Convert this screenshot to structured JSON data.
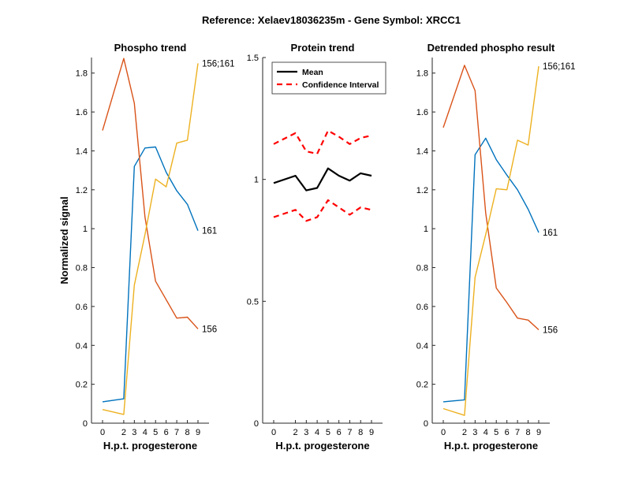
{
  "figure": {
    "suptitle": "Reference:  Xelaev18036235m - Gene Symbol:  XRCC1"
  },
  "colors": {
    "blue": "#0072BD",
    "orange": "#D95319",
    "yellow": "#EDB120",
    "mean": "#000000",
    "ci": "#FF0000"
  },
  "chart_data": [
    {
      "type": "line",
      "title": "Phospho trend",
      "xlabel": "H.p.t. progesterone",
      "ylabel": "Normalized signal",
      "x": [
        0,
        2,
        3,
        4,
        5,
        6,
        7,
        8,
        9
      ],
      "xticks": [
        "0",
        "2",
        "3",
        "4",
        "5",
        "6",
        "7",
        "8",
        "9"
      ],
      "ylim": [
        0,
        1.88
      ],
      "yticks": [
        "0",
        "0.2",
        "0.4",
        "0.6",
        "0.8",
        "1",
        "1.2",
        "1.4",
        "1.6",
        "1.8"
      ],
      "series": [
        {
          "name": "161",
          "color": "blue",
          "values": [
            0.11,
            0.125,
            1.32,
            1.415,
            1.42,
            1.29,
            1.195,
            1.125,
            0.99
          ]
        },
        {
          "name": "156",
          "color": "orange",
          "values": [
            1.505,
            1.875,
            1.645,
            1.06,
            0.73,
            0.635,
            0.54,
            0.545,
            0.485
          ]
        },
        {
          "name": "156;161",
          "color": "yellow",
          "values": [
            0.07,
            0.045,
            0.71,
            0.97,
            1.255,
            1.215,
            1.44,
            1.455,
            1.85
          ]
        }
      ],
      "end_labels": [
        "161",
        "156",
        "156;161"
      ]
    },
    {
      "type": "line",
      "title": "Protein trend",
      "xlabel": "H.p.t. progesterone",
      "ylabel": "",
      "x": [
        0,
        2,
        3,
        4,
        5,
        6,
        7,
        8,
        9
      ],
      "xticks": [
        "0",
        "2",
        "3",
        "4",
        "5",
        "6",
        "7",
        "8",
        "9"
      ],
      "ylim": [
        0,
        1.5
      ],
      "yticks": [
        "0",
        "0.5",
        "1",
        "1.5"
      ],
      "legend": {
        "position": "top-left",
        "entries": [
          "Mean",
          "Confidence Interval"
        ]
      },
      "series": [
        {
          "name": "Mean",
          "color": "mean",
          "style": "solid",
          "values": [
            0.985,
            1.015,
            0.955,
            0.965,
            1.045,
            1.015,
            0.995,
            1.025,
            1.015
          ]
        },
        {
          "name": "Confidence Interval",
          "color": "ci",
          "style": "dashed",
          "values": [
            1.145,
            1.19,
            1.115,
            1.105,
            1.2,
            1.175,
            1.145,
            1.17,
            1.18
          ]
        },
        {
          "name": "",
          "color": "ci",
          "style": "dashed",
          "values": [
            0.845,
            0.875,
            0.83,
            0.845,
            0.915,
            0.885,
            0.855,
            0.885,
            0.875
          ]
        }
      ]
    },
    {
      "type": "line",
      "title": "Detrended phospho result",
      "xlabel": "H.p.t. progesterone",
      "ylabel": "",
      "x": [
        0,
        2,
        3,
        4,
        5,
        6,
        7,
        8,
        9
      ],
      "xticks": [
        "0",
        "2",
        "3",
        "4",
        "5",
        "6",
        "7",
        "8",
        "9"
      ],
      "ylim": [
        0,
        1.88
      ],
      "yticks": [
        "0",
        "0.2",
        "0.4",
        "0.6",
        "0.8",
        "1",
        "1.2",
        "1.4",
        "1.6",
        "1.8"
      ],
      "series": [
        {
          "name": "161",
          "color": "blue",
          "values": [
            0.11,
            0.12,
            1.38,
            1.465,
            1.355,
            1.275,
            1.2,
            1.1,
            0.98
          ]
        },
        {
          "name": "156",
          "color": "orange",
          "values": [
            1.52,
            1.84,
            1.71,
            1.08,
            0.695,
            0.62,
            0.54,
            0.53,
            0.48
          ]
        },
        {
          "name": "156;161",
          "color": "yellow",
          "values": [
            0.075,
            0.04,
            0.75,
            0.97,
            1.205,
            1.2,
            1.455,
            1.43,
            1.835
          ]
        }
      ],
      "end_labels": [
        "161",
        "156",
        "156;161"
      ]
    }
  ]
}
